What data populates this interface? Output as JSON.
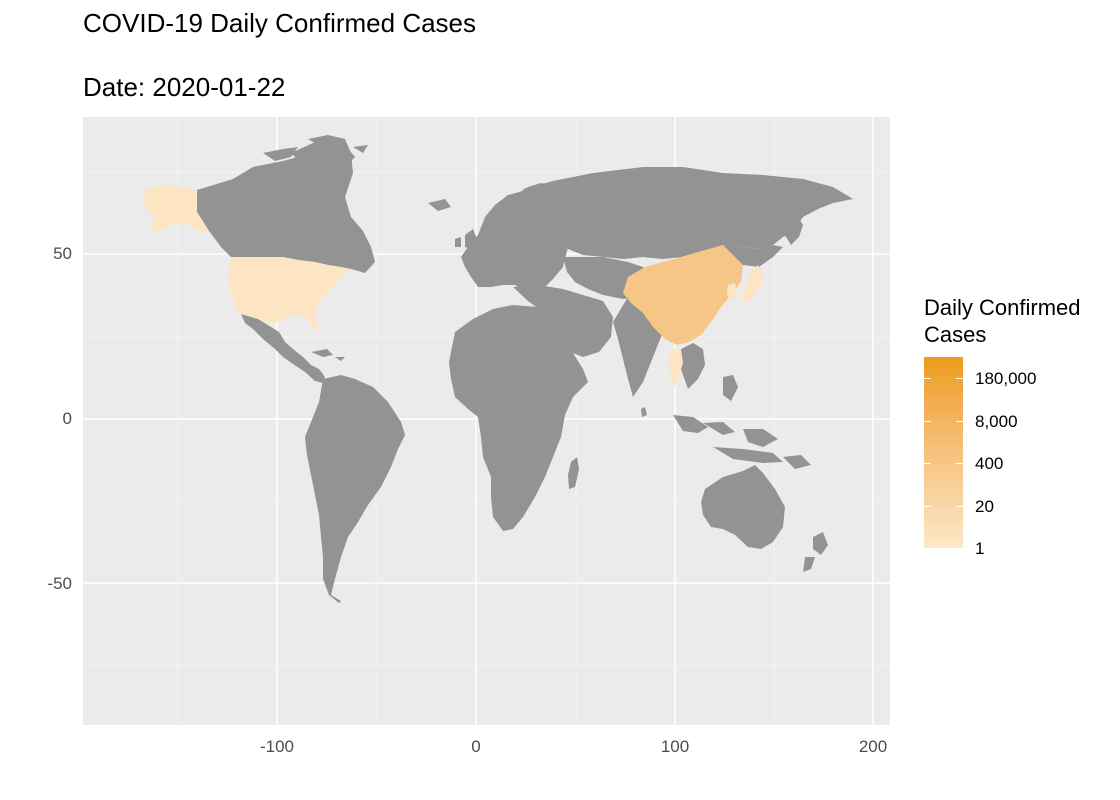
{
  "title": "COVID-19 Daily Confirmed Cases",
  "subtitle": "Date: 2020-01-22",
  "colors": {
    "panel": "#ebebeb",
    "grid_major": "#ffffff",
    "land_no_data": "#939393",
    "low": "#fde8c8",
    "high": "#ec9c1b",
    "china": "#f6c687",
    "other_reported": "#fde4c2"
  },
  "axes": {
    "x_ticks": [
      "-100",
      "0",
      "100",
      "200"
    ],
    "y_ticks": [
      "50",
      "0",
      "-50"
    ]
  },
  "legend": {
    "title_line1": "Daily Confirmed",
    "title_line2": "Cases",
    "labels": [
      "180,000",
      "8,000",
      "400",
      "20",
      "1"
    ]
  },
  "chart_data": {
    "type": "choropleth",
    "title": "COVID-19 Daily Confirmed Cases",
    "subtitle": "Date: 2020-01-22",
    "xlim": [
      -197,
      208
    ],
    "ylim": [
      -90,
      94
    ],
    "x_ticks": [
      -100,
      0,
      100,
      200
    ],
    "y_ticks": [
      -50,
      0,
      50
    ],
    "fill_scale": "log",
    "legend_breaks": [
      180000,
      8000,
      400,
      20,
      1
    ],
    "regions": [
      {
        "region": "China",
        "value": 500
      },
      {
        "region": "United States",
        "value": 1
      },
      {
        "region": "Japan",
        "value": 2
      },
      {
        "region": "South Korea",
        "value": 1
      },
      {
        "region": "Thailand",
        "value": 4
      }
    ]
  }
}
